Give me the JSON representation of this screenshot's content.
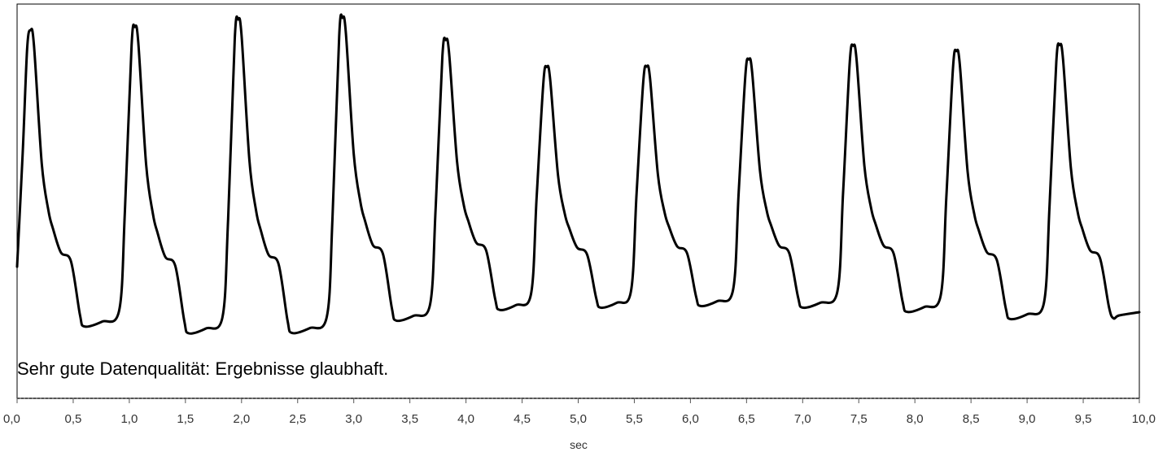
{
  "chart_data": {
    "type": "line",
    "title": "",
    "xlabel": "sec",
    "ylabel": "",
    "xlim": [
      0,
      10
    ],
    "x_ticks": [
      0,
      0.5,
      1,
      1.5,
      2,
      2.5,
      3,
      3.5,
      4,
      4.5,
      5,
      5.5,
      6,
      6.5,
      7,
      7.5,
      8,
      8.5,
      9,
      9.5,
      10
    ],
    "x_tick_labels": [
      "0,0",
      "0,5",
      "1,0",
      "1,5",
      "2,0",
      "2,5",
      "3,0",
      "3,5",
      "4,0",
      "4,5",
      "5,0",
      "5,5",
      "6,0",
      "6,5",
      "7,0",
      "7,5",
      "8,0",
      "8,5",
      "9,0",
      "9,5",
      "10,0"
    ],
    "annotation": "Sehr gute Datenqualität: Ergebnisse glaubhaft.",
    "grid": false,
    "legend": "none",
    "line_color": "#000000",
    "series": [
      {
        "beats": [
          {
            "peak_time": 0.12,
            "peak": 0.957,
            "trough": 0.046
          },
          {
            "peak_time": 1.05,
            "peak": 0.967,
            "trough": 0.025
          },
          {
            "peak_time": 1.97,
            "peak": 0.99,
            "trough": 0.026
          },
          {
            "peak_time": 2.9,
            "peak": 0.995,
            "trough": 0.064
          },
          {
            "peak_time": 3.82,
            "peak": 0.927,
            "trough": 0.097
          },
          {
            "peak_time": 4.72,
            "peak": 0.844,
            "trough": 0.104
          },
          {
            "peak_time": 5.61,
            "peak": 0.845,
            "trough": 0.109
          },
          {
            "peak_time": 6.52,
            "peak": 0.867,
            "trough": 0.104
          },
          {
            "peak_time": 7.45,
            "peak": 0.909,
            "trough": 0.091
          },
          {
            "peak_time": 8.37,
            "peak": 0.893,
            "trough": 0.069
          },
          {
            "peak_time": 9.29,
            "peak": 0.911,
            "trough": 0.071
          }
        ],
        "start_value": 0.23,
        "end_value": 0.09
      }
    ]
  }
}
